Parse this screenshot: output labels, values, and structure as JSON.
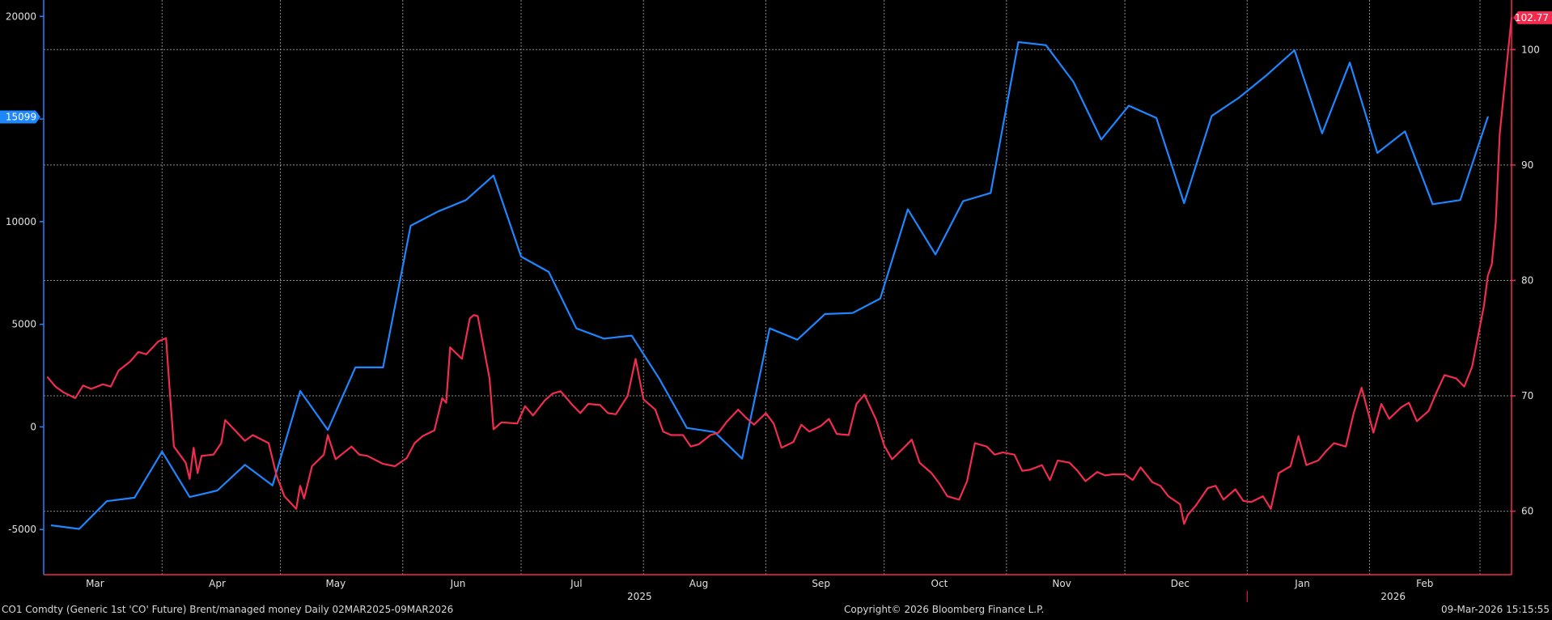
{
  "chart_data": {
    "type": "line",
    "x_start": "2025-03-02",
    "x_end": "2026-03-09",
    "month_ticks": [
      {
        "date": "2025-03-15",
        "label": "Mar"
      },
      {
        "date": "2025-04-15",
        "label": "Apr"
      },
      {
        "date": "2025-05-15",
        "label": "May"
      },
      {
        "date": "2025-06-15",
        "label": "Jun"
      },
      {
        "date": "2025-07-15",
        "label": "Jul"
      },
      {
        "date": "2025-08-15",
        "label": "Aug"
      },
      {
        "date": "2025-09-15",
        "label": "Sep"
      },
      {
        "date": "2025-10-15",
        "label": "Oct"
      },
      {
        "date": "2025-11-15",
        "label": "Nov"
      },
      {
        "date": "2025-12-15",
        "label": "Dec"
      },
      {
        "date": "2026-01-15",
        "label": "Jan"
      },
      {
        "date": "2026-02-15",
        "label": "Feb"
      }
    ],
    "year_labels": [
      {
        "date": "2025-07-31",
        "label": "2025"
      },
      {
        "date": "2026-02-07",
        "label": "2026"
      }
    ],
    "vertical_gridlines": [
      "2025-04-01",
      "2025-05-01",
      "2025-06-01",
      "2025-07-01",
      "2025-08-01",
      "2025-09-01",
      "2025-10-01",
      "2025-11-01",
      "2025-12-01",
      "2026-01-01",
      "2026-02-01",
      "2026-03-01"
    ],
    "left_axis": {
      "ylim": [
        -7200,
        20800
      ],
      "ticks": [
        -5000,
        0,
        5000,
        10000,
        15000,
        20000
      ]
    },
    "right_axis": {
      "ylim": [
        54.5,
        104.3
      ],
      "ticks": [
        60,
        70,
        80,
        90,
        100
      ]
    },
    "grid": true,
    "series": [
      {
        "axis": "left",
        "color": "#1e86ff",
        "last_value_label": "15099",
        "points": [
          [
            "2025-03-04",
            -4800
          ],
          [
            "2025-03-11",
            -4970
          ],
          [
            "2025-03-18",
            -3620
          ],
          [
            "2025-03-25",
            -3450
          ],
          [
            "2025-04-01",
            -1200
          ],
          [
            "2025-04-08",
            -3420
          ],
          [
            "2025-04-15",
            -3100
          ],
          [
            "2025-04-22",
            -1850
          ],
          [
            "2025-04-29",
            -2850
          ],
          [
            "2025-05-06",
            1750
          ],
          [
            "2025-05-13",
            -150
          ],
          [
            "2025-05-20",
            2900
          ],
          [
            "2025-05-27",
            2900
          ],
          [
            "2025-06-03",
            9800
          ],
          [
            "2025-06-10",
            10500
          ],
          [
            "2025-06-17",
            11050
          ],
          [
            "2025-06-24",
            12250
          ],
          [
            "2025-07-01",
            8300
          ],
          [
            "2025-07-08",
            7550
          ],
          [
            "2025-07-15",
            4800
          ],
          [
            "2025-07-22",
            4300
          ],
          [
            "2025-07-29",
            4450
          ],
          [
            "2025-08-05",
            2350
          ],
          [
            "2025-08-12",
            -50
          ],
          [
            "2025-08-19",
            -250
          ],
          [
            "2025-08-26",
            -1550
          ],
          [
            "2025-09-02",
            4800
          ],
          [
            "2025-09-09",
            4250
          ],
          [
            "2025-09-16",
            5500
          ],
          [
            "2025-09-23",
            5550
          ],
          [
            "2025-09-30",
            6250
          ],
          [
            "2025-10-07",
            10600
          ],
          [
            "2025-10-14",
            8400
          ],
          [
            "2025-10-21",
            11000
          ],
          [
            "2025-10-28",
            11400
          ],
          [
            "2025-11-04",
            18750
          ],
          [
            "2025-11-11",
            18600
          ],
          [
            "2025-11-18",
            16800
          ],
          [
            "2025-11-25",
            14000
          ],
          [
            "2025-12-02",
            15650
          ],
          [
            "2025-12-09",
            15050
          ],
          [
            "2025-12-16",
            10900
          ],
          [
            "2025-12-23",
            15150
          ],
          [
            "2025-12-30",
            16050
          ],
          [
            "2026-01-06",
            17150
          ],
          [
            "2026-01-13",
            18350
          ],
          [
            "2026-01-20",
            14300
          ],
          [
            "2026-01-27",
            17750
          ],
          [
            "2026-02-03",
            13350
          ],
          [
            "2026-02-10",
            14400
          ],
          [
            "2026-02-17",
            10850
          ],
          [
            "2026-02-24",
            11050
          ],
          [
            "2026-03-03",
            15099
          ]
        ]
      },
      {
        "axis": "right",
        "color": "#f22c4e",
        "last_value_label": "102.77",
        "points": [
          [
            "2025-03-03",
            71.6
          ],
          [
            "2025-03-05",
            70.8
          ],
          [
            "2025-03-07",
            70.3
          ],
          [
            "2025-03-10",
            69.8
          ],
          [
            "2025-03-12",
            70.9
          ],
          [
            "2025-03-14",
            70.6
          ],
          [
            "2025-03-17",
            71.0
          ],
          [
            "2025-03-19",
            70.8
          ],
          [
            "2025-03-21",
            72.2
          ],
          [
            "2025-03-24",
            73.0
          ],
          [
            "2025-03-26",
            73.8
          ],
          [
            "2025-03-28",
            73.6
          ],
          [
            "2025-03-31",
            74.7
          ],
          [
            "2025-04-02",
            75.0
          ],
          [
            "2025-04-03",
            70.2
          ],
          [
            "2025-04-04",
            65.6
          ],
          [
            "2025-04-07",
            64.2
          ],
          [
            "2025-04-08",
            62.8
          ],
          [
            "2025-04-09",
            65.5
          ],
          [
            "2025-04-10",
            63.3
          ],
          [
            "2025-04-11",
            64.8
          ],
          [
            "2025-04-14",
            64.9
          ],
          [
            "2025-04-16",
            65.9
          ],
          [
            "2025-04-17",
            67.9
          ],
          [
            "2025-04-22",
            66.1
          ],
          [
            "2025-04-24",
            66.6
          ],
          [
            "2025-04-28",
            65.9
          ],
          [
            "2025-04-30",
            63.1
          ],
          [
            "2025-05-02",
            61.3
          ],
          [
            "2025-05-05",
            60.2
          ],
          [
            "2025-05-06",
            62.2
          ],
          [
            "2025-05-07",
            61.1
          ],
          [
            "2025-05-09",
            63.9
          ],
          [
            "2025-05-12",
            64.9
          ],
          [
            "2025-05-13",
            66.6
          ],
          [
            "2025-05-15",
            64.5
          ],
          [
            "2025-05-19",
            65.6
          ],
          [
            "2025-05-21",
            64.9
          ],
          [
            "2025-05-23",
            64.8
          ],
          [
            "2025-05-27",
            64.1
          ],
          [
            "2025-05-30",
            63.9
          ],
          [
            "2025-06-02",
            64.6
          ],
          [
            "2025-06-04",
            65.9
          ],
          [
            "2025-06-06",
            66.5
          ],
          [
            "2025-06-09",
            67.0
          ],
          [
            "2025-06-11",
            69.8
          ],
          [
            "2025-06-12",
            69.4
          ],
          [
            "2025-06-13",
            74.2
          ],
          [
            "2025-06-16",
            73.2
          ],
          [
            "2025-06-18",
            76.7
          ],
          [
            "2025-06-19",
            77.0
          ],
          [
            "2025-06-20",
            76.9
          ],
          [
            "2025-06-23",
            71.5
          ],
          [
            "2025-06-24",
            67.1
          ],
          [
            "2025-06-26",
            67.7
          ],
          [
            "2025-06-30",
            67.6
          ],
          [
            "2025-07-02",
            69.1
          ],
          [
            "2025-07-04",
            68.3
          ],
          [
            "2025-07-07",
            69.6
          ],
          [
            "2025-07-09",
            70.2
          ],
          [
            "2025-07-11",
            70.4
          ],
          [
            "2025-07-14",
            69.2
          ],
          [
            "2025-07-16",
            68.5
          ],
          [
            "2025-07-18",
            69.3
          ],
          [
            "2025-07-21",
            69.2
          ],
          [
            "2025-07-23",
            68.5
          ],
          [
            "2025-07-25",
            68.4
          ],
          [
            "2025-07-28",
            70.0
          ],
          [
            "2025-07-30",
            73.2
          ],
          [
            "2025-08-01",
            69.7
          ],
          [
            "2025-08-04",
            68.8
          ],
          [
            "2025-08-06",
            66.9
          ],
          [
            "2025-08-08",
            66.6
          ],
          [
            "2025-08-11",
            66.6
          ],
          [
            "2025-08-13",
            65.6
          ],
          [
            "2025-08-15",
            65.8
          ],
          [
            "2025-08-18",
            66.6
          ],
          [
            "2025-08-20",
            66.8
          ],
          [
            "2025-08-22",
            67.7
          ],
          [
            "2025-08-25",
            68.8
          ],
          [
            "2025-08-27",
            68.1
          ],
          [
            "2025-08-29",
            67.5
          ],
          [
            "2025-09-01",
            68.5
          ],
          [
            "2025-09-03",
            67.6
          ],
          [
            "2025-09-05",
            65.5
          ],
          [
            "2025-09-08",
            66.0
          ],
          [
            "2025-09-10",
            67.5
          ],
          [
            "2025-09-12",
            66.9
          ],
          [
            "2025-09-15",
            67.4
          ],
          [
            "2025-09-17",
            68.0
          ],
          [
            "2025-09-19",
            66.7
          ],
          [
            "2025-09-22",
            66.6
          ],
          [
            "2025-09-24",
            69.3
          ],
          [
            "2025-09-26",
            70.1
          ],
          [
            "2025-09-29",
            67.9
          ],
          [
            "2025-10-01",
            65.7
          ],
          [
            "2025-10-03",
            64.5
          ],
          [
            "2025-10-06",
            65.5
          ],
          [
            "2025-10-08",
            66.2
          ],
          [
            "2025-10-10",
            64.2
          ],
          [
            "2025-10-13",
            63.3
          ],
          [
            "2025-10-15",
            62.4
          ],
          [
            "2025-10-17",
            61.3
          ],
          [
            "2025-10-20",
            61.0
          ],
          [
            "2025-10-22",
            62.6
          ],
          [
            "2025-10-24",
            65.9
          ],
          [
            "2025-10-27",
            65.6
          ],
          [
            "2025-10-29",
            64.9
          ],
          [
            "2025-10-31",
            65.1
          ],
          [
            "2025-11-03",
            64.9
          ],
          [
            "2025-11-05",
            63.5
          ],
          [
            "2025-11-07",
            63.6
          ],
          [
            "2025-11-10",
            64.0
          ],
          [
            "2025-11-12",
            62.7
          ],
          [
            "2025-11-14",
            64.4
          ],
          [
            "2025-11-17",
            64.2
          ],
          [
            "2025-11-19",
            63.5
          ],
          [
            "2025-11-21",
            62.6
          ],
          [
            "2025-11-24",
            63.4
          ],
          [
            "2025-11-26",
            63.1
          ],
          [
            "2025-11-28",
            63.2
          ],
          [
            "2025-12-01",
            63.2
          ],
          [
            "2025-12-03",
            62.7
          ],
          [
            "2025-12-05",
            63.8
          ],
          [
            "2025-12-08",
            62.5
          ],
          [
            "2025-12-10",
            62.2
          ],
          [
            "2025-12-12",
            61.3
          ],
          [
            "2025-12-15",
            60.6
          ],
          [
            "2025-12-16",
            58.9
          ],
          [
            "2025-12-17",
            59.7
          ],
          [
            "2025-12-19",
            60.5
          ],
          [
            "2025-12-22",
            62.0
          ],
          [
            "2025-12-24",
            62.2
          ],
          [
            "2025-12-26",
            61.0
          ],
          [
            "2025-12-29",
            61.9
          ],
          [
            "2025-12-31",
            60.9
          ],
          [
            "2026-01-02",
            60.8
          ],
          [
            "2026-01-05",
            61.3
          ],
          [
            "2026-01-07",
            60.2
          ],
          [
            "2026-01-09",
            63.3
          ],
          [
            "2026-01-12",
            63.9
          ],
          [
            "2026-01-14",
            66.5
          ],
          [
            "2026-01-16",
            64.0
          ],
          [
            "2026-01-19",
            64.4
          ],
          [
            "2026-01-21",
            65.2
          ],
          [
            "2026-01-23",
            65.9
          ],
          [
            "2026-01-26",
            65.6
          ],
          [
            "2026-01-28",
            68.5
          ],
          [
            "2026-01-30",
            70.7
          ],
          [
            "2026-02-02",
            66.8
          ],
          [
            "2026-02-04",
            69.3
          ],
          [
            "2026-02-06",
            68.0
          ],
          [
            "2026-02-09",
            69.0
          ],
          [
            "2026-02-11",
            69.4
          ],
          [
            "2026-02-13",
            67.8
          ],
          [
            "2026-02-16",
            68.7
          ],
          [
            "2026-02-18",
            70.3
          ],
          [
            "2026-02-20",
            71.8
          ],
          [
            "2026-02-23",
            71.5
          ],
          [
            "2026-02-25",
            70.8
          ],
          [
            "2026-02-27",
            72.5
          ],
          [
            "2026-03-02",
            77.8
          ],
          [
            "2026-03-03",
            80.4
          ],
          [
            "2026-03-04",
            81.4
          ],
          [
            "2026-03-05",
            85.0
          ],
          [
            "2026-03-06",
            92.7
          ],
          [
            "2026-03-09",
            102.77
          ]
        ]
      }
    ]
  },
  "footer": {
    "left": "CO1 Comdty (Generic 1st 'CO' Future) Brent/managed money Daily 02MAR2025-09MAR2026",
    "center": "Copyright© 2026 Bloomberg Finance L.P.",
    "right": "09-Mar-2026 15:15:55"
  }
}
